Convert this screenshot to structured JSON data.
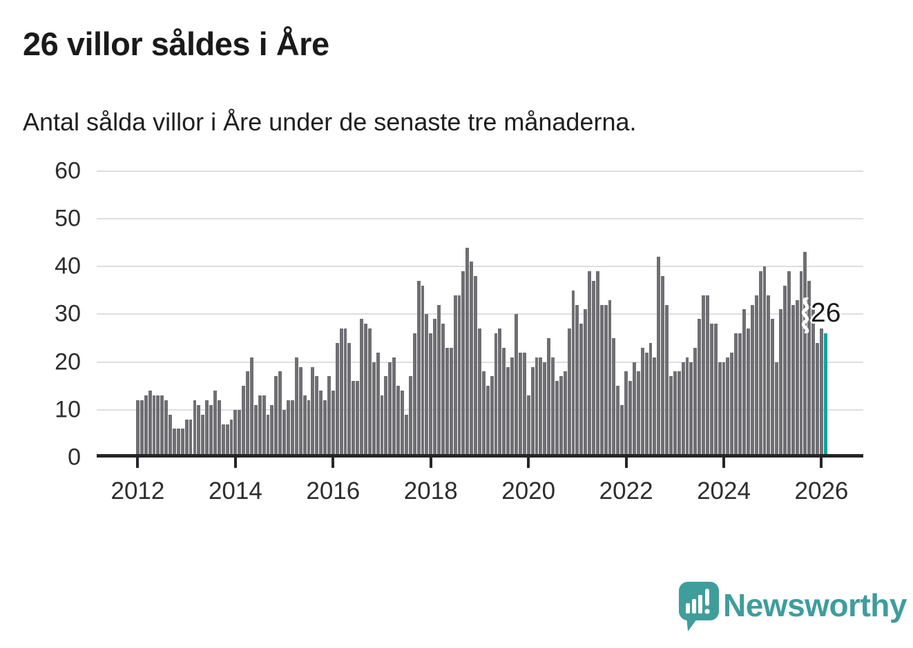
{
  "header": {
    "title": "26 villor såldes i Åre",
    "subtitle": "Antal sålda villor i Åre under de senaste tre månaderna."
  },
  "chart_data": {
    "type": "bar",
    "title": "26 villor såldes i Åre",
    "subtitle": "Antal sålda villor i Åre under de senaste tre månaderna.",
    "xlabel": "",
    "ylabel": "",
    "start_month": "2012-01",
    "end_month": "2026-02",
    "frequency": "monthly",
    "values": [
      12,
      12,
      13,
      14,
      13,
      13,
      13,
      12,
      9,
      6,
      6,
      6,
      8,
      8,
      12,
      11,
      9,
      12,
      11,
      14,
      12,
      7,
      7,
      8,
      10,
      10,
      15,
      18,
      21,
      11,
      13,
      13,
      9,
      11,
      17,
      18,
      10,
      12,
      12,
      21,
      19,
      13,
      12,
      19,
      17,
      14,
      12,
      17,
      14,
      24,
      27,
      27,
      24,
      16,
      16,
      29,
      28,
      27,
      20,
      22,
      13,
      17,
      20,
      21,
      15,
      14,
      9,
      17,
      26,
      37,
      36,
      30,
      26,
      29,
      32,
      28,
      23,
      23,
      34,
      34,
      39,
      44,
      41,
      38,
      27,
      18,
      15,
      17,
      26,
      27,
      23,
      19,
      21,
      30,
      22,
      22,
      13,
      19,
      21,
      21,
      20,
      25,
      21,
      16,
      17,
      18,
      27,
      35,
      32,
      28,
      31,
      39,
      37,
      39,
      32,
      32,
      33,
      25,
      15,
      11,
      18,
      16,
      20,
      18,
      23,
      22,
      24,
      21,
      42,
      38,
      32,
      17,
      18,
      18,
      20,
      21,
      20,
      23,
      29,
      34,
      34,
      28,
      28,
      20,
      20,
      21,
      22,
      26,
      26,
      31,
      27,
      32,
      34,
      39,
      40,
      34,
      29,
      20,
      31,
      36,
      39,
      32,
      33,
      39,
      43,
      37,
      32,
      24,
      27,
      26
    ],
    "ylim": [
      0,
      60
    ],
    "yticks": [
      0,
      10,
      20,
      30,
      40,
      50,
      60
    ],
    "xticks_years": [
      2012,
      2014,
      2016,
      2018,
      2020,
      2022,
      2024,
      2026
    ],
    "grid": true,
    "legend_position": "none",
    "bar_color": "#6f6f73",
    "highlight": {
      "month": "2026-02",
      "value": 26,
      "label": "26",
      "color": "#0fa3a1"
    }
  },
  "callout": {
    "label": "26"
  },
  "footer": {
    "brand": "Newsworthy",
    "brand_color": "#3f9d9c",
    "logo_icon": "bar-chart-speech-bubble-icon"
  }
}
